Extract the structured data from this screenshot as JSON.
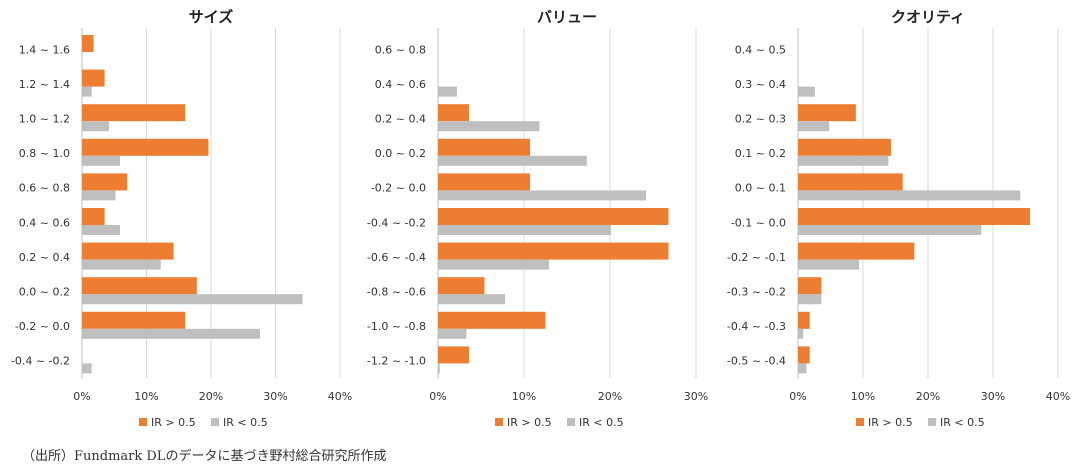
{
  "source_note": "（出所）Fundmark DLのデータに基づき野村総合研究所作成",
  "colors": {
    "ir_gt": "#ED7D31",
    "ir_lt": "#BFBFBF"
  },
  "chart_data": [
    {
      "type": "bar",
      "orientation": "horizontal",
      "title": "サイズ",
      "categories": [
        "1.4 ~ 1.6",
        "1.2 ~ 1.4",
        "1.0 ~ 1.2",
        "0.8 ~ 1.0",
        "0.6 ~ 0.8",
        "0.4 ~ 0.6",
        "0.2 ~ 0.4",
        "0.0 ~ 0.2",
        "-0.2 ~ 0.0",
        "-0.4 ~ -0.2"
      ],
      "series": [
        {
          "name": "IR > 0.5",
          "color": "#ED7D31",
          "values": [
            1.8,
            3.5,
            16.0,
            19.6,
            7.0,
            3.5,
            14.2,
            17.8,
            16.0,
            0
          ]
        },
        {
          "name": "IR < 0.5",
          "color": "#BFBFBF",
          "values": [
            0,
            1.5,
            4.2,
            5.9,
            5.2,
            5.9,
            12.2,
            34.2,
            27.6,
            1.5
          ]
        }
      ],
      "xlim": [
        0,
        40
      ],
      "xticks": [
        "0%",
        "10%",
        "20%",
        "30%",
        "40%"
      ],
      "xtick_values": [
        0,
        10,
        20,
        30,
        40
      ],
      "grid": true,
      "legend": "bottom"
    },
    {
      "type": "bar",
      "orientation": "horizontal",
      "title": "バリュー",
      "categories": [
        "0.6 ~ 0.8",
        "0.4 ~ 0.6",
        "0.2 ~ 0.4",
        "0.0 ~ 0.2",
        "-0.2 ~ 0.0",
        "-0.4 ~ -0.2",
        "-0.6 ~ -0.4",
        "-0.8 ~ -0.6",
        "-1.0 ~ -0.8",
        "-1.2 ~ -1.0"
      ],
      "series": [
        {
          "name": "IR > 0.5",
          "color": "#ED7D31",
          "values": [
            0,
            0,
            3.6,
            10.7,
            10.7,
            26.8,
            26.8,
            5.4,
            12.5,
            3.6
          ]
        },
        {
          "name": "IR < 0.5",
          "color": "#BFBFBF",
          "values": [
            0,
            2.2,
            11.8,
            17.3,
            24.2,
            20.1,
            12.9,
            7.8,
            3.3,
            0.2
          ]
        }
      ],
      "xlim": [
        0,
        30
      ],
      "xticks": [
        "0%",
        "10%",
        "20%",
        "30%"
      ],
      "xtick_values": [
        0,
        10,
        20,
        30
      ],
      "grid": true,
      "legend": "bottom"
    },
    {
      "type": "bar",
      "orientation": "horizontal",
      "title": "クオリティ",
      "categories": [
        "0.4 ~ 0.5",
        "0.3 ~ 0.4",
        "0.2 ~ 0.3",
        "0.1 ~ 0.2",
        "0.0 ~ 0.1",
        "-0.1 ~ 0.0",
        "-0.2 ~ -0.1",
        "-0.3 ~ -0.2",
        "-0.4 ~ -0.3",
        "-0.5 ~ -0.4"
      ],
      "series": [
        {
          "name": "IR > 0.5",
          "color": "#ED7D31",
          "values": [
            0,
            0,
            8.9,
            14.3,
            16.1,
            35.7,
            17.9,
            3.6,
            1.8,
            1.8
          ]
        },
        {
          "name": "IR < 0.5",
          "color": "#BFBFBF",
          "values": [
            0,
            2.6,
            4.8,
            13.9,
            34.2,
            28.2,
            9.4,
            3.6,
            0.8,
            1.3
          ]
        }
      ],
      "xlim": [
        0,
        40
      ],
      "xticks": [
        "0%",
        "10%",
        "20%",
        "30%",
        "40%"
      ],
      "xtick_values": [
        0,
        10,
        20,
        30,
        40
      ],
      "grid": true,
      "legend": "bottom"
    }
  ]
}
